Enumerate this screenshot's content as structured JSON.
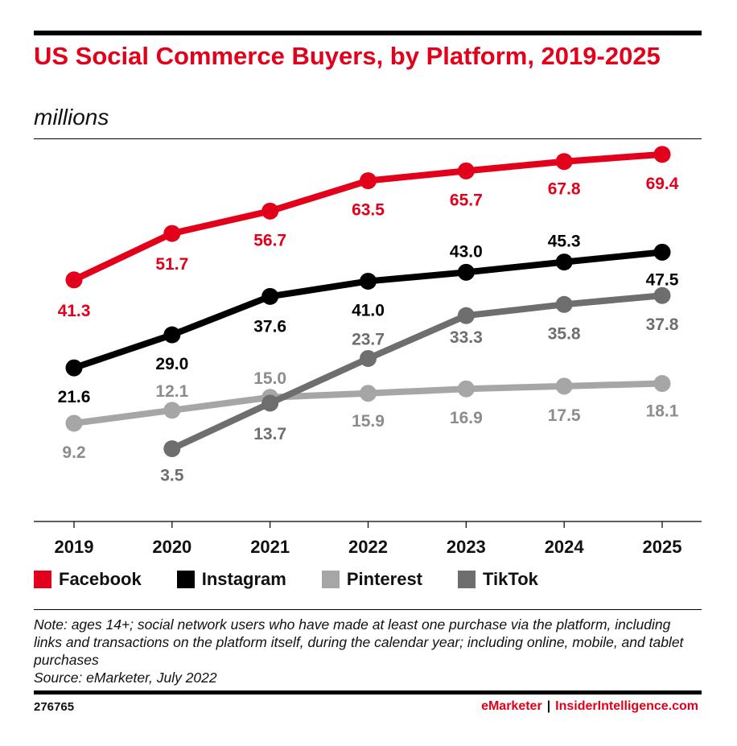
{
  "header": {
    "title": "US Social Commerce Buyers, by Platform, 2019-2025",
    "subtitle": "millions"
  },
  "chart_data": {
    "type": "line",
    "x": [
      "2019",
      "2020",
      "2021",
      "2022",
      "2023",
      "2024",
      "2025"
    ],
    "ylim": [
      0,
      80
    ],
    "grid": false,
    "legend_position": "bottom-left",
    "series": [
      {
        "name": "Facebook",
        "color": "#e3001b",
        "label_color": "#e3001b",
        "values": [
          41.3,
          51.7,
          56.7,
          63.5,
          65.7,
          67.8,
          69.4
        ],
        "labels": [
          "41.3",
          "51.7",
          "56.7",
          "63.5",
          "65.7",
          "67.8",
          "69.4"
        ]
      },
      {
        "name": "Instagram",
        "color": "#000000",
        "label_color": "#000000",
        "values": [
          21.6,
          29.0,
          37.6,
          41.0,
          43.0,
          45.3,
          47.5
        ],
        "labels": [
          "21.6",
          "29.0",
          "37.6",
          "41.0",
          "43.0",
          "45.3",
          "47.5"
        ]
      },
      {
        "name": "Pinterest",
        "color": "#a6a6a6",
        "label_color": "#8c8c8c",
        "values": [
          9.2,
          12.1,
          15.0,
          15.9,
          16.9,
          17.5,
          18.1
        ],
        "labels": [
          "9.2",
          "12.1",
          "15.0",
          "15.9",
          "16.9",
          "17.5",
          "18.1"
        ]
      },
      {
        "name": "TikTok",
        "color": "#6e6e6e",
        "label_color": "#6e6e6e",
        "values": [
          null,
          3.5,
          13.7,
          23.7,
          33.3,
          35.8,
          37.8
        ],
        "labels": [
          null,
          "3.5",
          "13.7",
          "23.7",
          "33.3",
          "35.8",
          "37.8"
        ]
      }
    ]
  },
  "legend": [
    {
      "label": "Facebook",
      "color": "#e3001b"
    },
    {
      "label": "Instagram",
      "color": "#000000"
    },
    {
      "label": "Pinterest",
      "color": "#a6a6a6"
    },
    {
      "label": "TikTok",
      "color": "#6e6e6e"
    }
  ],
  "note": {
    "text": "Note: ages 14+; social network users who have made at least one purchase via the platform, including links and transactions on the platform itself, during the calendar year; including online, mobile, and tablet purchases",
    "source": "Source: eMarketer, July 2022"
  },
  "footer": {
    "id": "276765",
    "brand_left": "eMarketer",
    "separator": "|",
    "brand_right": "InsiderIntelligence.com"
  }
}
